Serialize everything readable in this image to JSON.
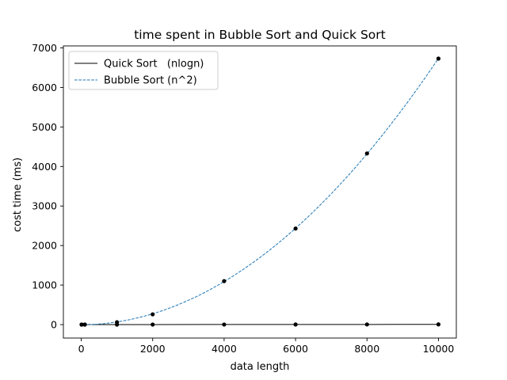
{
  "chart_data": {
    "type": "line",
    "title": "time spent in Bubble Sort and Quick Sort",
    "xlabel": "data length",
    "ylabel": "cost time (ms)",
    "xlim": [
      -500,
      10500
    ],
    "ylim": [
      -340,
      7050
    ],
    "xticks": [
      0,
      2000,
      4000,
      6000,
      8000,
      10000
    ],
    "yticks": [
      0,
      1000,
      2000,
      3000,
      4000,
      5000,
      6000,
      7000
    ],
    "grid": false,
    "legend_position": "top-left",
    "series": [
      {
        "name": "Quick Sort   (nlogn)",
        "color": "#000000",
        "style": "solid",
        "x": [
          10,
          100,
          1000,
          2000,
          4000,
          6000,
          8000,
          10000
        ],
        "y": [
          0,
          0,
          0,
          1,
          2,
          3,
          4,
          5
        ]
      },
      {
        "name": "Bubble Sort (n^2)",
        "color": "#1f77b4",
        "style": "dashed",
        "curve": "quadratic-fit",
        "x": [
          10,
          100,
          1000,
          2000,
          4000,
          6000,
          8000,
          10000
        ],
        "y": [
          0,
          1,
          60,
          260,
          1100,
          2430,
          4330,
          6730
        ]
      }
    ],
    "markers": {
      "color": "#000000",
      "points": [
        {
          "x": 10,
          "y": 0
        },
        {
          "x": 100,
          "y": 1
        },
        {
          "x": 1000,
          "y": 60
        },
        {
          "x": 2000,
          "y": 260
        },
        {
          "x": 4000,
          "y": 1100
        },
        {
          "x": 6000,
          "y": 2430
        },
        {
          "x": 8000,
          "y": 4330
        },
        {
          "x": 10000,
          "y": 6730
        },
        {
          "x": 10,
          "y": 0
        },
        {
          "x": 100,
          "y": 0
        },
        {
          "x": 1000,
          "y": 0
        },
        {
          "x": 2000,
          "y": 1
        },
        {
          "x": 4000,
          "y": 2
        },
        {
          "x": 6000,
          "y": 3
        },
        {
          "x": 8000,
          "y": 4
        },
        {
          "x": 10000,
          "y": 5
        }
      ]
    }
  }
}
